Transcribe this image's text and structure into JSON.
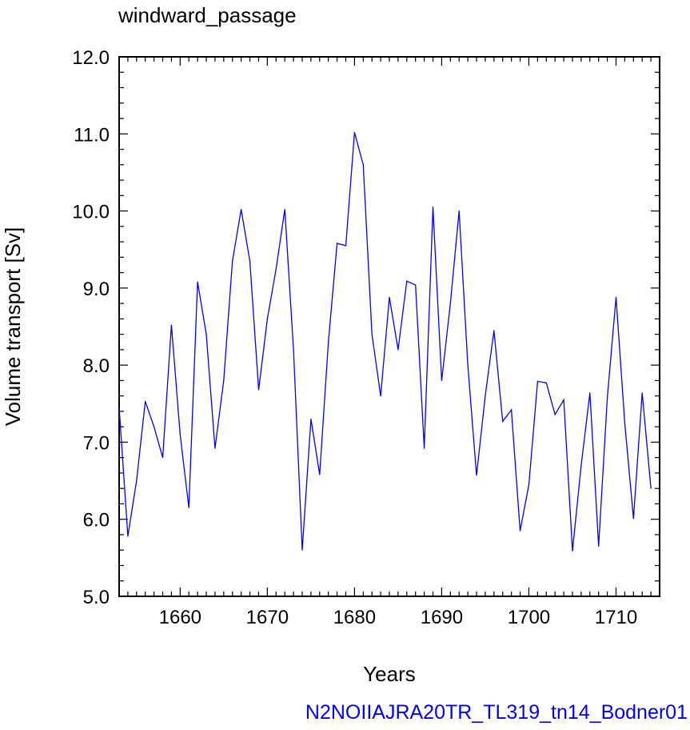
{
  "chart_data": {
    "type": "line",
    "title": "windward_passage",
    "xlabel": "Years",
    "ylabel": "Volume transport [Sv]",
    "xlim": [
      1653,
      1715
    ],
    "ylim": [
      5.0,
      12.0
    ],
    "x_ticks": [
      1660,
      1670,
      1680,
      1690,
      1700,
      1710
    ],
    "x_tick_labels": [
      "1660",
      "1670",
      "1680",
      "1690",
      "1700",
      "1710"
    ],
    "y_ticks": [
      5,
      6,
      7,
      8,
      9,
      10,
      11,
      12
    ],
    "y_tick_labels": [
      "5.0",
      "6.0",
      "7.0",
      "8.0",
      "9.0",
      "10.0",
      "11.0",
      "12.0"
    ],
    "grid": false,
    "series": [
      {
        "color": "#0000ff",
        "x": [
          1653,
          1654,
          1655,
          1656,
          1657,
          1658,
          1659,
          1660,
          1661,
          1662,
          1663,
          1664,
          1665,
          1666,
          1667,
          1668,
          1669,
          1670,
          1671,
          1672,
          1673,
          1674,
          1675,
          1676,
          1677,
          1678,
          1679,
          1680,
          1681,
          1682,
          1683,
          1684,
          1685,
          1686,
          1687,
          1688,
          1689,
          1690,
          1691,
          1692,
          1693,
          1694,
          1695,
          1696,
          1697,
          1698,
          1699,
          1700,
          1701,
          1702,
          1703,
          1704,
          1705,
          1706,
          1707,
          1708,
          1709,
          1710,
          1711,
          1712,
          1713,
          1714
        ],
        "values": [
          7.45,
          5.78,
          6.5,
          7.53,
          7.2,
          6.8,
          8.52,
          7.1,
          6.15,
          9.08,
          8.4,
          6.92,
          7.8,
          9.35,
          10.02,
          9.35,
          7.68,
          8.6,
          9.25,
          10.02,
          8.2,
          5.6,
          7.3,
          6.58,
          8.3,
          9.58,
          9.55,
          11.02,
          10.6,
          8.4,
          7.6,
          8.88,
          8.2,
          9.09,
          9.04,
          6.92,
          10.05,
          7.8,
          8.8,
          10.0,
          8.0,
          6.57,
          7.6,
          8.45,
          7.27,
          7.42,
          5.85,
          6.45,
          7.79,
          7.77,
          7.36,
          7.55,
          5.59,
          6.7,
          7.64,
          5.65,
          7.58,
          8.88,
          7.25,
          6.01,
          7.64,
          6.4
        ]
      }
    ]
  },
  "footer": {
    "text": "N2NOIIAJRA20TR_TL319_tn14_Bodner01",
    "color": "#0000ff"
  }
}
